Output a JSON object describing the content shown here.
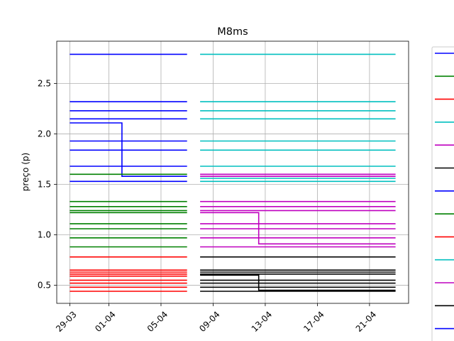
{
  "chart_data": {
    "type": "line",
    "title": "M8ms",
    "xlabel": "",
    "ylabel": "preço (p)",
    "x_type": "date",
    "xlim": [
      "2020-03-28",
      "2020-04-24"
    ],
    "ylim": [
      0.32,
      2.92
    ],
    "xticks": [
      {
        "date": "2020-03-29",
        "label": "29-03"
      },
      {
        "date": "2020-04-01",
        "label": "01-04"
      },
      {
        "date": "2020-04-05",
        "label": "05-04"
      },
      {
        "date": "2020-04-09",
        "label": "09-04"
      },
      {
        "date": "2020-04-13",
        "label": "13-04"
      },
      {
        "date": "2020-04-17",
        "label": "17-04"
      },
      {
        "date": "2020-04-21",
        "label": "21-04"
      }
    ],
    "yticks": [
      0.5,
      1.0,
      1.5,
      2.0,
      2.5
    ],
    "grid": true,
    "legend": {
      "placement": "right, outside plot",
      "colors": [
        "#0000ff",
        "#008000",
        "#ff0000",
        "#00bfbf",
        "#bf00bf",
        "#000000",
        "#0000ff",
        "#008000",
        "#ff0000",
        "#00bfbf",
        "#bf00bf",
        "#000000",
        "#0000ff"
      ]
    },
    "series": [
      {
        "color": "#0000ff",
        "x": [
          "2020-03-29",
          "2020-04-07"
        ],
        "y": [
          2.79,
          2.79
        ]
      },
      {
        "color": "#0000ff",
        "x": [
          "2020-03-29",
          "2020-04-07"
        ],
        "y": [
          2.32,
          2.32
        ]
      },
      {
        "color": "#0000ff",
        "x": [
          "2020-03-29",
          "2020-04-07"
        ],
        "y": [
          2.23,
          2.23
        ]
      },
      {
        "color": "#0000ff",
        "x": [
          "2020-03-29",
          "2020-04-07"
        ],
        "y": [
          2.15,
          2.15
        ]
      },
      {
        "color": "#0000ff",
        "x": [
          "2020-03-29",
          "2020-04-02",
          "2020-04-02",
          "2020-04-07"
        ],
        "y": [
          2.11,
          2.11,
          1.58,
          1.58
        ]
      },
      {
        "color": "#0000ff",
        "x": [
          "2020-03-29",
          "2020-04-07"
        ],
        "y": [
          1.93,
          1.93
        ]
      },
      {
        "color": "#0000ff",
        "x": [
          "2020-03-29",
          "2020-04-07"
        ],
        "y": [
          1.84,
          1.84
        ]
      },
      {
        "color": "#0000ff",
        "x": [
          "2020-03-29",
          "2020-04-07"
        ],
        "y": [
          1.68,
          1.68
        ]
      },
      {
        "color": "#0000ff",
        "x": [
          "2020-03-29",
          "2020-04-07"
        ],
        "y": [
          1.53,
          1.53
        ]
      },
      {
        "color": "#008000",
        "x": [
          "2020-03-29",
          "2020-04-07"
        ],
        "y": [
          1.6,
          1.6
        ]
      },
      {
        "color": "#008000",
        "x": [
          "2020-03-29",
          "2020-04-07"
        ],
        "y": [
          1.33,
          1.33
        ]
      },
      {
        "color": "#008000",
        "x": [
          "2020-03-29",
          "2020-04-07"
        ],
        "y": [
          1.28,
          1.28
        ]
      },
      {
        "color": "#008000",
        "x": [
          "2020-03-29",
          "2020-04-07"
        ],
        "y": [
          1.24,
          1.24
        ]
      },
      {
        "color": "#008000",
        "x": [
          "2020-03-29",
          "2020-04-07"
        ],
        "y": [
          1.22,
          1.22
        ]
      },
      {
        "color": "#008000",
        "x": [
          "2020-03-29",
          "2020-04-07"
        ],
        "y": [
          1.11,
          1.11
        ]
      },
      {
        "color": "#008000",
        "x": [
          "2020-03-29",
          "2020-04-07"
        ],
        "y": [
          1.06,
          1.06
        ]
      },
      {
        "color": "#008000",
        "x": [
          "2020-03-29",
          "2020-04-07"
        ],
        "y": [
          0.97,
          0.97
        ]
      },
      {
        "color": "#008000",
        "x": [
          "2020-03-29",
          "2020-04-07"
        ],
        "y": [
          0.88,
          0.88
        ]
      },
      {
        "color": "#ff0000",
        "x": [
          "2020-03-29",
          "2020-04-07"
        ],
        "y": [
          0.78,
          0.78
        ]
      },
      {
        "color": "#ff0000",
        "x": [
          "2020-03-29",
          "2020-04-07"
        ],
        "y": [
          0.65,
          0.65
        ]
      },
      {
        "color": "#ff0000",
        "x": [
          "2020-03-29",
          "2020-04-07"
        ],
        "y": [
          0.63,
          0.63
        ]
      },
      {
        "color": "#ff0000",
        "x": [
          "2020-03-29",
          "2020-04-07"
        ],
        "y": [
          0.61,
          0.61
        ]
      },
      {
        "color": "#ff0000",
        "x": [
          "2020-03-29",
          "2020-04-07"
        ],
        "y": [
          0.59,
          0.59
        ]
      },
      {
        "color": "#ff0000",
        "x": [
          "2020-03-29",
          "2020-04-07"
        ],
        "y": [
          0.55,
          0.55
        ]
      },
      {
        "color": "#ff0000",
        "x": [
          "2020-03-29",
          "2020-04-07"
        ],
        "y": [
          0.52,
          0.52
        ]
      },
      {
        "color": "#ff0000",
        "x": [
          "2020-03-29",
          "2020-04-07"
        ],
        "y": [
          0.48,
          0.48
        ]
      },
      {
        "color": "#ff0000",
        "x": [
          "2020-03-29",
          "2020-04-07"
        ],
        "y": [
          0.44,
          0.44
        ]
      },
      {
        "color": "#00bfbf",
        "x": [
          "2020-04-08",
          "2020-04-23"
        ],
        "y": [
          2.79,
          2.79
        ]
      },
      {
        "color": "#00bfbf",
        "x": [
          "2020-04-08",
          "2020-04-23"
        ],
        "y": [
          2.32,
          2.32
        ]
      },
      {
        "color": "#00bfbf",
        "x": [
          "2020-04-08",
          "2020-04-23"
        ],
        "y": [
          2.23,
          2.23
        ]
      },
      {
        "color": "#00bfbf",
        "x": [
          "2020-04-08",
          "2020-04-23"
        ],
        "y": [
          2.15,
          2.15
        ]
      },
      {
        "color": "#00bfbf",
        "x": [
          "2020-04-08",
          "2020-04-23"
        ],
        "y": [
          1.93,
          1.93
        ]
      },
      {
        "color": "#00bfbf",
        "x": [
          "2020-04-08",
          "2020-04-23"
        ],
        "y": [
          1.84,
          1.84
        ]
      },
      {
        "color": "#00bfbf",
        "x": [
          "2020-04-08",
          "2020-04-23"
        ],
        "y": [
          1.68,
          1.68
        ]
      },
      {
        "color": "#00bfbf",
        "x": [
          "2020-04-08",
          "2020-04-23"
        ],
        "y": [
          1.56,
          1.56
        ]
      },
      {
        "color": "#00bfbf",
        "x": [
          "2020-04-08",
          "2020-04-23"
        ],
        "y": [
          1.53,
          1.53
        ]
      },
      {
        "color": "#bf00bf",
        "x": [
          "2020-04-08",
          "2020-04-23"
        ],
        "y": [
          1.6,
          1.6
        ]
      },
      {
        "color": "#bf00bf",
        "x": [
          "2020-04-08",
          "2020-04-23"
        ],
        "y": [
          1.58,
          1.58
        ]
      },
      {
        "color": "#bf00bf",
        "x": [
          "2020-04-08",
          "2020-04-23"
        ],
        "y": [
          1.33,
          1.33
        ]
      },
      {
        "color": "#bf00bf",
        "x": [
          "2020-04-08",
          "2020-04-23"
        ],
        "y": [
          1.28,
          1.28
        ]
      },
      {
        "color": "#bf00bf",
        "x": [
          "2020-04-08",
          "2020-04-23"
        ],
        "y": [
          1.24,
          1.24
        ]
      },
      {
        "color": "#bf00bf",
        "x": [
          "2020-04-08",
          "2020-04-12.5",
          "2020-04-12.5",
          "2020-04-23"
        ],
        "y": [
          1.22,
          1.22,
          0.91,
          0.91
        ]
      },
      {
        "color": "#bf00bf",
        "x": [
          "2020-04-08",
          "2020-04-23"
        ],
        "y": [
          1.11,
          1.11
        ]
      },
      {
        "color": "#bf00bf",
        "x": [
          "2020-04-08",
          "2020-04-23"
        ],
        "y": [
          1.06,
          1.06
        ]
      },
      {
        "color": "#bf00bf",
        "x": [
          "2020-04-08",
          "2020-04-23"
        ],
        "y": [
          0.97,
          0.97
        ]
      },
      {
        "color": "#bf00bf",
        "x": [
          "2020-04-08",
          "2020-04-23"
        ],
        "y": [
          0.88,
          0.88
        ]
      },
      {
        "color": "#000000",
        "x": [
          "2020-04-08",
          "2020-04-23"
        ],
        "y": [
          0.78,
          0.78
        ]
      },
      {
        "color": "#000000",
        "x": [
          "2020-04-08",
          "2020-04-23"
        ],
        "y": [
          0.65,
          0.65
        ]
      },
      {
        "color": "#000000",
        "x": [
          "2020-04-08",
          "2020-04-23"
        ],
        "y": [
          0.63,
          0.63
        ]
      },
      {
        "color": "#000000",
        "x": [
          "2020-04-08",
          "2020-04-12.5",
          "2020-04-12.5",
          "2020-04-23"
        ],
        "y": [
          0.6,
          0.6,
          0.45,
          0.45
        ]
      },
      {
        "color": "#000000",
        "x": [
          "2020-04-08",
          "2020-04-23"
        ],
        "y": [
          0.61,
          0.61
        ]
      },
      {
        "color": "#000000",
        "x": [
          "2020-04-08",
          "2020-04-23"
        ],
        "y": [
          0.55,
          0.55
        ]
      },
      {
        "color": "#000000",
        "x": [
          "2020-04-08",
          "2020-04-23"
        ],
        "y": [
          0.52,
          0.52
        ]
      },
      {
        "color": "#000000",
        "x": [
          "2020-04-08",
          "2020-04-23"
        ],
        "y": [
          0.48,
          0.48
        ]
      },
      {
        "color": "#000000",
        "x": [
          "2020-04-08",
          "2020-04-23"
        ],
        "y": [
          0.44,
          0.44
        ]
      }
    ]
  }
}
